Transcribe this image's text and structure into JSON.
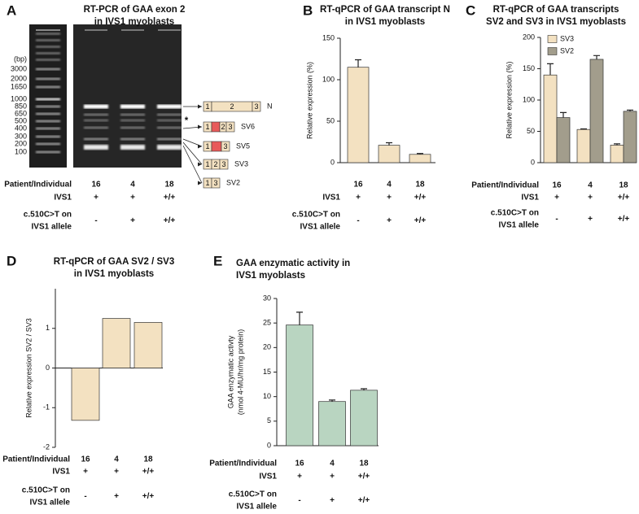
{
  "gel": {
    "label": "A",
    "title": [
      "RT-PCR of GAA exon 2",
      "in IVS1 myoblasts"
    ],
    "ladder_unit": "(bp)",
    "ladder": [
      "3000",
      "2000",
      "1650",
      "1000",
      "850",
      "650",
      "500",
      "400",
      "300",
      "200",
      "100"
    ],
    "bands": [
      {
        "name": "N",
        "exons": [
          "1",
          "2",
          "3"
        ]
      },
      {
        "name": "SV6",
        "exons": [
          "1",
          "2",
          "3"
        ]
      },
      {
        "name": "SV5",
        "exons": [
          "1",
          "3"
        ]
      },
      {
        "name": "SV3",
        "exons": [
          "1",
          "2",
          "3"
        ]
      },
      {
        "name": "SV2",
        "exons": [
          "1",
          "3"
        ]
      }
    ],
    "asterisk": "*",
    "row_label": "Patient/Individual",
    "categories": [
      "16",
      "4",
      "18"
    ],
    "rows": [
      {
        "label": [
          "IVS1"
        ],
        "values": [
          "+",
          "+",
          "+/+"
        ]
      },
      {
        "label": [
          "c.510C>T on",
          "IVS1 allele"
        ],
        "values": [
          "-",
          "+",
          "+/+"
        ]
      }
    ]
  },
  "chart_data": [
    {
      "type": "bar",
      "label": "B",
      "title": [
        "RT-qPCR of GAA transcript N",
        "in IVS1 myoblasts"
      ],
      "ylabel": [
        "Relative expression (%)"
      ],
      "categories": [
        "16",
        "4",
        "18"
      ],
      "series": [
        {
          "color": "#f3e1c1",
          "values": [
            115,
            21,
            10
          ],
          "errors": [
            9,
            3,
            1
          ]
        }
      ],
      "ylim": [
        0,
        150
      ],
      "yticks": [
        0,
        50,
        100,
        150
      ],
      "rows": [
        {
          "label": [
            "IVS1"
          ],
          "values": [
            "+",
            "+",
            "+/+"
          ]
        },
        {
          "label": [
            "c.510C>T on",
            "IVS1 allele"
          ],
          "values": [
            "-",
            "+",
            "+/+"
          ]
        }
      ]
    },
    {
      "type": "bar",
      "label": "C",
      "title": [
        "RT-qPCR of GAA transcripts",
        "SV2 and SV3 in IVS1 myoblasts"
      ],
      "ylabel": [
        "Relative expression (%)"
      ],
      "categories": [
        "16",
        "4",
        "18"
      ],
      "series": [
        {
          "name": "SV3",
          "color": "#f3e1c1",
          "values": [
            140,
            53,
            28
          ],
          "errors": [
            18,
            1,
            2
          ]
        },
        {
          "name": "SV2",
          "color": "#a29d8c",
          "values": [
            72,
            165,
            82
          ],
          "errors": [
            8,
            6,
            2
          ]
        }
      ],
      "ylim": [
        0,
        200
      ],
      "yticks": [
        0,
        50,
        100,
        150,
        200
      ],
      "legend": "upper left",
      "row_label": "Patient/Individual",
      "rows": [
        {
          "label": [
            "IVS1"
          ],
          "values": [
            "+",
            "+",
            "+/+"
          ]
        },
        {
          "label": [
            "c.510C>T on",
            "IVS1 allele"
          ],
          "values": [
            "-",
            "+",
            "+/+"
          ]
        }
      ]
    },
    {
      "type": "bar",
      "label": "D",
      "title": [
        "RT-qPCR of GAA SV2 / SV3",
        "in IVS1 myoblasts"
      ],
      "ylabel": [
        "Relative expression SV2 / SV3"
      ],
      "categories": [
        "16",
        "4",
        "18"
      ],
      "series": [
        {
          "color": "#f3e1c1",
          "values": [
            -1.32,
            1.25,
            1.15
          ]
        }
      ],
      "ylim": [
        -2,
        2
      ],
      "yticks": [
        -2,
        -1,
        0,
        1
      ],
      "row_label": "Patient/Individual",
      "rows": [
        {
          "label": [
            "IVS1"
          ],
          "values": [
            "+",
            "+",
            "+/+"
          ]
        },
        {
          "label": [
            "c.510C>T on",
            "IVS1 allele"
          ],
          "values": [
            "-",
            "+",
            "+/+"
          ]
        }
      ]
    },
    {
      "type": "bar",
      "label": "E",
      "title": [
        "GAA enzymatic activity in",
        "IVS1 myoblasts"
      ],
      "ylabel": [
        "GAA enzymatic activty",
        "(nmol 4-MU/hr/mg protein)"
      ],
      "categories": [
        "16",
        "4",
        "18"
      ],
      "series": [
        {
          "color": "#b9d5c1",
          "values": [
            24.6,
            9.0,
            11.3
          ],
          "errors": [
            2.6,
            0.3,
            0.3
          ]
        }
      ],
      "ylim": [
        0,
        30
      ],
      "yticks": [
        0,
        5,
        10,
        15,
        20,
        25,
        30
      ],
      "row_label": "Patient/Individual",
      "rows": [
        {
          "label": [
            "IVS1"
          ],
          "values": [
            "+",
            "+",
            "+/+"
          ]
        },
        {
          "label": [
            "c.510C>T on",
            "IVS1 allele"
          ],
          "values": [
            "-",
            "+",
            "+/+"
          ]
        }
      ]
    }
  ]
}
